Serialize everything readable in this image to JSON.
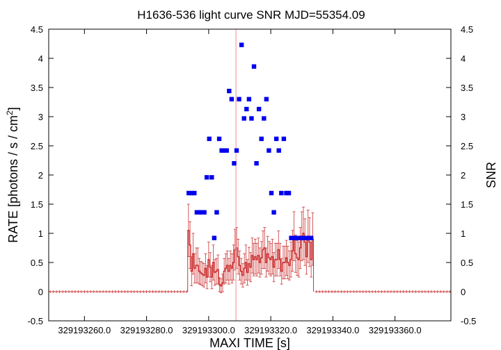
{
  "chart_data": {
    "type": "scatter",
    "title": "H1636-536 light curve  SNR MJD=55354.09",
    "xlabel": "MAXI TIME [s]",
    "ylabel_left_main": "RATE [photons / s / cm",
    "ylabel_left_sup": "2",
    "ylabel_left_end": "]",
    "ylabel_right": "SNR",
    "xlim": [
      329193248.5,
      329193378.0
    ],
    "ylim": [
      -0.5,
      4.5
    ],
    "x_ticks": [
      329193260,
      329193280,
      329193300,
      329193320,
      329193340,
      329193360
    ],
    "x_tick_labels": [
      "329193260.0",
      "329193280.0",
      "329193300.0",
      "329193320.0",
      "329193340.0",
      "329193360.0"
    ],
    "y_ticks": [
      -0.5,
      0,
      0.5,
      1,
      1.5,
      2,
      2.5,
      3,
      3.5,
      4,
      4.5
    ],
    "y_tick_labels": [
      "-0.5",
      "0",
      "0.5",
      "1",
      "1.5",
      "2",
      "2.5",
      "3",
      "3.5",
      "4",
      "4.5"
    ],
    "y2_tick_labels": [
      "-0.5",
      "0",
      "0.5",
      "1",
      "1.5",
      "2",
      "2.5",
      "3",
      "3.5",
      "4",
      "4.5"
    ],
    "vline_x": 329193308.8,
    "colors": {
      "rate": "#cc3333",
      "snr": "#0000ee",
      "vline": "#f2a0a0"
    },
    "rate_series": {
      "baseline_left": {
        "x_start": 329193248.5,
        "x_end": 329193293.3,
        "value": 0
      },
      "baseline_right": {
        "x_start": 329193334.2,
        "x_end": 329193378.0,
        "value": 0
      },
      "x": [
        329193293.5,
        329193294.0,
        329193294.5,
        329193295.0,
        329193295.5,
        329193296.0,
        329193296.5,
        329193297.0,
        329193297.5,
        329193298.0,
        329193298.5,
        329193299.0,
        329193299.5,
        329193300.0,
        329193300.5,
        329193301.0,
        329193301.5,
        329193302.0,
        329193302.5,
        329193303.0,
        329193303.5,
        329193304.0,
        329193304.5,
        329193305.0,
        329193305.5,
        329193306.0,
        329193306.5,
        329193307.0,
        329193307.5,
        329193308.0,
        329193308.5,
        329193309.0,
        329193309.5,
        329193310.0,
        329193310.5,
        329193311.0,
        329193311.5,
        329193312.0,
        329193312.5,
        329193313.0,
        329193313.5,
        329193314.0,
        329193314.5,
        329193315.0,
        329193315.5,
        329193316.0,
        329193316.5,
        329193317.0,
        329193317.5,
        329193318.0,
        329193318.5,
        329193319.0,
        329193319.5,
        329193320.0,
        329193320.5,
        329193321.0,
        329193321.5,
        329193322.0,
        329193322.5,
        329193323.0,
        329193323.5,
        329193324.0,
        329193324.5,
        329193325.0,
        329193325.5,
        329193326.0,
        329193326.5,
        329193327.0,
        329193327.5,
        329193328.0,
        329193328.5,
        329193329.0,
        329193329.5,
        329193330.0,
        329193330.5,
        329193331.0,
        329193331.5,
        329193332.0,
        329193332.5,
        329193333.0,
        329193333.5
      ],
      "y": [
        1.05,
        0.8,
        0.35,
        0.65,
        0.4,
        0.45,
        0.45,
        0.35,
        0.32,
        0.3,
        0.28,
        0.4,
        0.25,
        0.55,
        0.42,
        0.25,
        0.5,
        0.33,
        0.35,
        0.38,
        0.12,
        0.1,
        0.15,
        0.35,
        0.4,
        0.45,
        0.35,
        0.45,
        0.4,
        0.5,
        0.72,
        0.75,
        0.6,
        0.45,
        0.35,
        0.28,
        0.4,
        0.5,
        0.33,
        0.48,
        0.42,
        0.62,
        0.55,
        0.6,
        0.55,
        0.62,
        0.5,
        0.58,
        0.72,
        0.75,
        0.5,
        0.65,
        0.58,
        0.55,
        0.6,
        0.42,
        0.55,
        0.55,
        0.72,
        0.55,
        0.35,
        0.5,
        0.5,
        0.58,
        0.5,
        0.45,
        0.55,
        0.7,
        0.95,
        0.65,
        0.58,
        0.55,
        0.75,
        0.95,
        1.0,
        0.85,
        0.6,
        0.95,
        0.85,
        0.55,
        0.9
      ],
      "err": [
        0.45,
        0.4,
        0.25,
        0.35,
        0.25,
        0.3,
        0.3,
        0.22,
        0.2,
        0.2,
        0.2,
        0.25,
        0.2,
        0.3,
        0.25,
        0.2,
        0.3,
        0.22,
        0.22,
        0.25,
        0.12,
        0.12,
        0.15,
        0.22,
        0.25,
        0.25,
        0.22,
        0.25,
        0.25,
        0.3,
        0.35,
        0.35,
        0.3,
        0.25,
        0.22,
        0.2,
        0.25,
        0.3,
        0.22,
        0.28,
        0.25,
        0.3,
        0.28,
        0.3,
        0.28,
        0.3,
        0.25,
        0.28,
        0.32,
        0.35,
        0.25,
        0.3,
        0.28,
        0.28,
        0.3,
        0.25,
        0.28,
        0.28,
        0.32,
        0.28,
        0.22,
        0.28,
        0.28,
        0.3,
        0.28,
        0.25,
        0.3,
        0.35,
        0.42,
        0.32,
        0.3,
        0.3,
        0.35,
        0.42,
        0.45,
        0.4,
        0.3,
        0.45,
        0.42,
        0.3,
        0.45
      ]
    },
    "snr_series": {
      "x": [
        329193293.6,
        329193294.5,
        329193295.4,
        329193296.2,
        329193297.0,
        329193297.8,
        329193298.6,
        329193299.4,
        329193300.2,
        329193301.0,
        329193301.8,
        329193302.6,
        329193303.4,
        329193304.2,
        329193305.0,
        329193305.8,
        329193306.6,
        329193307.4,
        329193308.2,
        329193309.0,
        329193309.8,
        329193310.6,
        329193311.4,
        329193312.2,
        329193313.0,
        329193313.8,
        329193314.6,
        329193315.4,
        329193316.2,
        329193317.0,
        329193317.8,
        329193318.6,
        329193319.4,
        329193320.2,
        329193321.0,
        329193321.8,
        329193322.6,
        329193323.4,
        329193324.2,
        329193325.0,
        329193325.8,
        329193326.6,
        329193327.4,
        329193328.2,
        329193329.0,
        329193329.8,
        329193330.6,
        329193331.4,
        329193332.2,
        329193333.0
      ],
      "y": [
        1.69,
        1.69,
        1.69,
        1.36,
        1.36,
        1.36,
        1.36,
        1.96,
        2.62,
        1.96,
        0.92,
        1.36,
        2.62,
        2.42,
        2.42,
        2.42,
        3.44,
        3.3,
        2.2,
        2.42,
        3.3,
        4.23,
        2.97,
        3.13,
        3.3,
        2.97,
        3.86,
        2.2,
        3.13,
        2.62,
        2.97,
        3.3,
        2.42,
        1.69,
        1.36,
        2.62,
        2.42,
        1.69,
        2.62,
        1.69,
        1.69,
        0.92,
        0.92,
        0.92,
        0.92,
        0.92,
        0.92,
        0.92,
        0.92,
        0.92
      ]
    }
  }
}
